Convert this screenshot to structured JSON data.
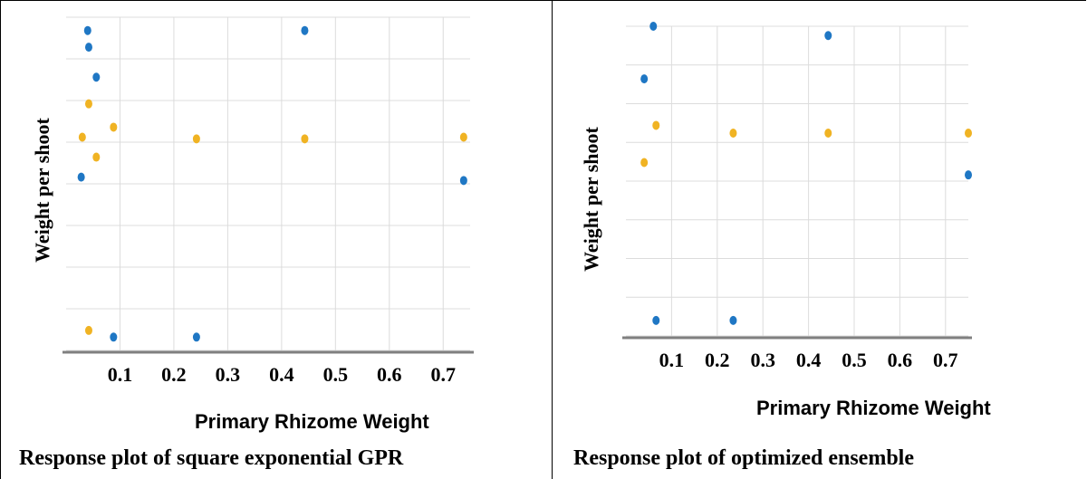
{
  "colors": {
    "series_blue": "#1f77c4",
    "series_orange": "#f0b323",
    "grid": "#dcdcdc",
    "axis": "#808080"
  },
  "chart_data": [
    {
      "type": "scatter",
      "title": "Response plot of square exponential GPR",
      "xlabel": "Primary Rhizome Weight",
      "ylabel": "Weight per shoot",
      "xticks": [
        "0.1",
        "0.2",
        "0.3",
        "0.4",
        "0.5",
        "0.6",
        "0.7"
      ],
      "xlim": [
        0.0,
        0.75
      ],
      "ylim": [
        0,
        1
      ],
      "grid": true,
      "series": [
        {
          "color": "#1f77c4",
          "x": [
            0.04,
            0.042,
            0.056,
            0.028,
            0.088,
            0.242,
            0.443,
            0.738
          ],
          "y": [
            0.96,
            0.91,
            0.82,
            0.52,
            0.04,
            0.04,
            0.96,
            0.51
          ]
        },
        {
          "color": "#f0b323",
          "x": [
            0.042,
            0.088,
            0.03,
            0.056,
            0.242,
            0.443,
            0.738,
            0.042
          ],
          "y": [
            0.74,
            0.67,
            0.64,
            0.58,
            0.635,
            0.635,
            0.64,
            0.06
          ]
        }
      ]
    },
    {
      "type": "scatter",
      "title": "Response plot of optimized ensemble",
      "xlabel": "Primary Rhizome Weight",
      "ylabel": "Weight per shoot",
      "xticks": [
        "0.1",
        "0.2",
        "0.3",
        "0.4",
        "0.5",
        "0.6",
        "0.7"
      ],
      "xlim": [
        0.0,
        0.75
      ],
      "ylim": [
        0,
        1
      ],
      "grid": true,
      "series": [
        {
          "color": "#1f77c4",
          "x": [
            0.06,
            0.443,
            0.04,
            0.066,
            0.235,
            0.75
          ],
          "y": [
            1.0,
            0.97,
            0.83,
            0.05,
            0.05,
            0.52
          ]
        },
        {
          "color": "#f0b323",
          "x": [
            0.066,
            0.235,
            0.443,
            0.75,
            0.04
          ],
          "y": [
            0.68,
            0.655,
            0.655,
            0.655,
            0.56
          ]
        }
      ]
    }
  ]
}
